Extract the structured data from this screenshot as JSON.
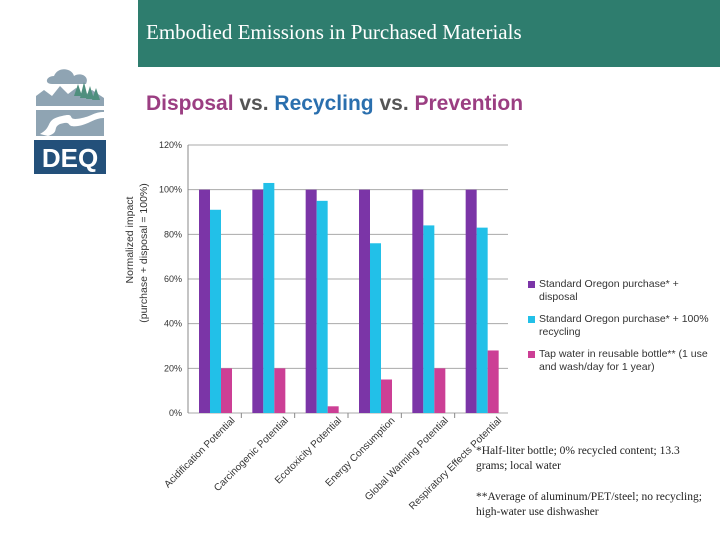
{
  "header": {
    "title": "Embodied Emissions in Purchased Materials"
  },
  "logo": {
    "text": "DEQ"
  },
  "subtitle": {
    "word1": "Disposal",
    "sep1": " vs. ",
    "word3": "Recycling",
    "sep2": " vs. ",
    "word5": "Prevention"
  },
  "chart_data": {
    "type": "bar",
    "ylabel_line1": "Normalized impact",
    "ylabel_line2": "(purchase + disposal = 100%)",
    "ylim": [
      0,
      120
    ],
    "yticks": [
      0,
      20,
      40,
      60,
      80,
      100,
      120
    ],
    "ytick_labels": [
      "0%",
      "20%",
      "40%",
      "60%",
      "80%",
      "100%",
      "120%"
    ],
    "grid": true,
    "legend_position": "right",
    "categories": [
      "Acidification Potential",
      "Carcinogenic Potential",
      "Ecotoxicity Potential",
      "Energy Consumption",
      "Global Warming Potential",
      "Respiratory Effects Potential"
    ],
    "series": [
      {
        "name": "Standard Oregon purchase* + disposal",
        "color": "#7b35a7",
        "values": [
          100,
          100,
          100,
          100,
          100,
          100
        ]
      },
      {
        "name": "Standard Oregon purchase* + 100% recycling",
        "color": "#22c0e8",
        "values": [
          91,
          103,
          95,
          76,
          84,
          83
        ]
      },
      {
        "name": "Tap water in reusable bottle** (1 use and wash/day for 1 year)",
        "color": "#cc3f95",
        "values": [
          20,
          20,
          3,
          15,
          20,
          28
        ]
      }
    ]
  },
  "footnotes": {
    "note1": "*Half-liter bottle; 0% recycled content; 13.3 grams; local water",
    "note2": "**Average of aluminum/PET/steel; no recycling; high-water use dishwasher"
  },
  "colors": {
    "header_bg": "#2e7d6e",
    "logo_blue": "#23507a",
    "logo_grey": "#8fa4b3",
    "logo_green": "#4f8f7e"
  }
}
